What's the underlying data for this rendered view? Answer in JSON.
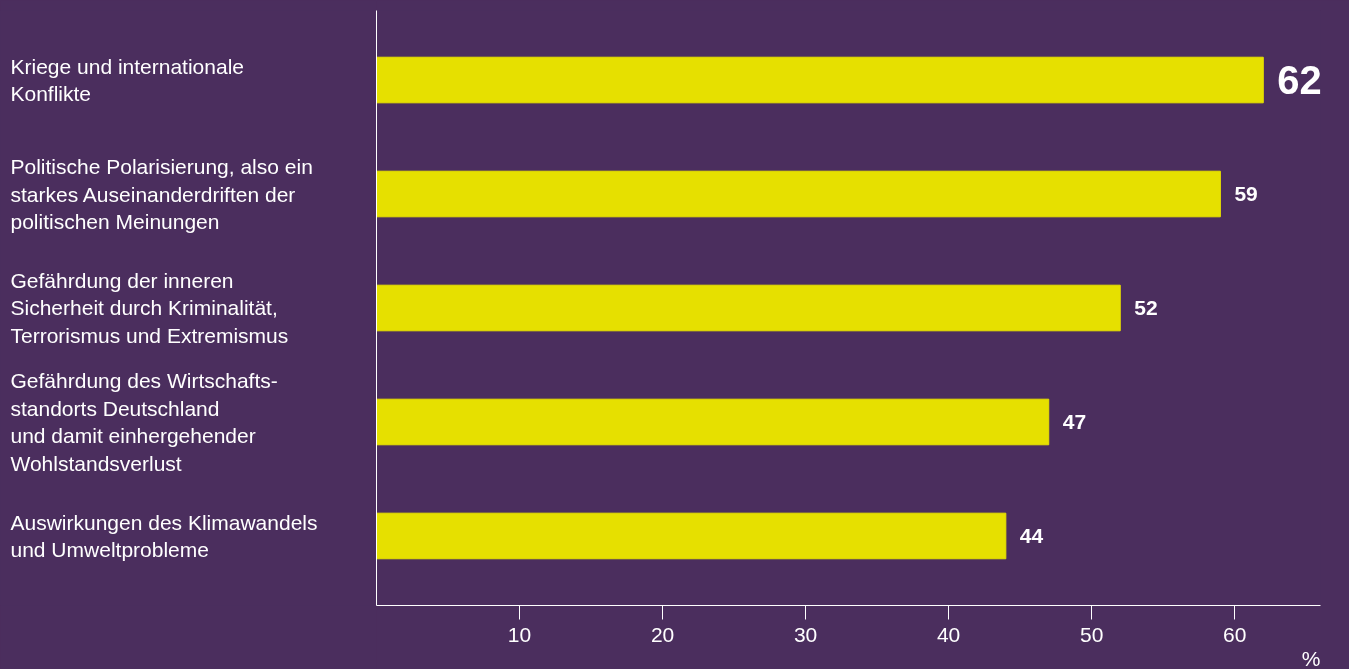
{
  "chart_data": {
    "type": "bar",
    "orientation": "horizontal",
    "xlabel": "%",
    "categories": [
      "Kriege und internationale\nKonflikte",
      "Politische Polarisierung, also ein\nstarkes Auseinanderdriften der\npolitischen Meinungen",
      "Gefährdung der inneren\nSicherheit durch Kriminalität,\nTerrorismus und Extremismus",
      "Gefährdung des Wirtschafts-\nstandorts Deutschland\nund damit einhergehender\nWohlstandsverlust",
      "Auswirkungen des Klimawandels\nund Umweltprobleme"
    ],
    "values": [
      62,
      59,
      52,
      47,
      44
    ],
    "color": "#e6e000",
    "xlim": [
      0,
      66
    ],
    "xticks": [
      10,
      20,
      30,
      40,
      50,
      60
    ],
    "grid": false,
    "data_labels": true
  }
}
